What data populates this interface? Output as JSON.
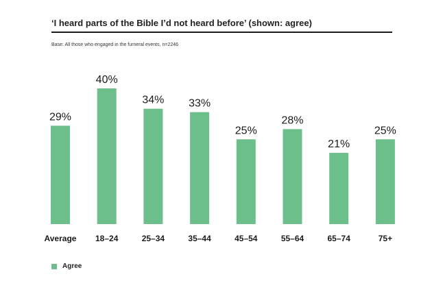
{
  "chart_data": {
    "type": "bar",
    "title": "‘I heard parts of the Bible I’d not heard before’ (shown: agree)",
    "subtitle": "Base: All those who engaged in the furneral events, n=2246",
    "categories": [
      "Average",
      "18–24",
      "25–34",
      "35–44",
      "45–54",
      "55–64",
      "65–74",
      "75+"
    ],
    "series": [
      {
        "name": "Agree",
        "values": [
          29,
          40,
          34,
          33,
          25,
          28,
          21,
          25
        ],
        "labels": [
          "29%",
          "40%",
          "34%",
          "33%",
          "25%",
          "28%",
          "21%",
          "25%"
        ]
      }
    ],
    "xlabel": "",
    "ylabel": "",
    "ylim": [
      0,
      40
    ],
    "grid": false,
    "legend": "bottom-left"
  },
  "colors": {
    "bar": "#6cbf8a",
    "rule": "#1a1a1a"
  }
}
